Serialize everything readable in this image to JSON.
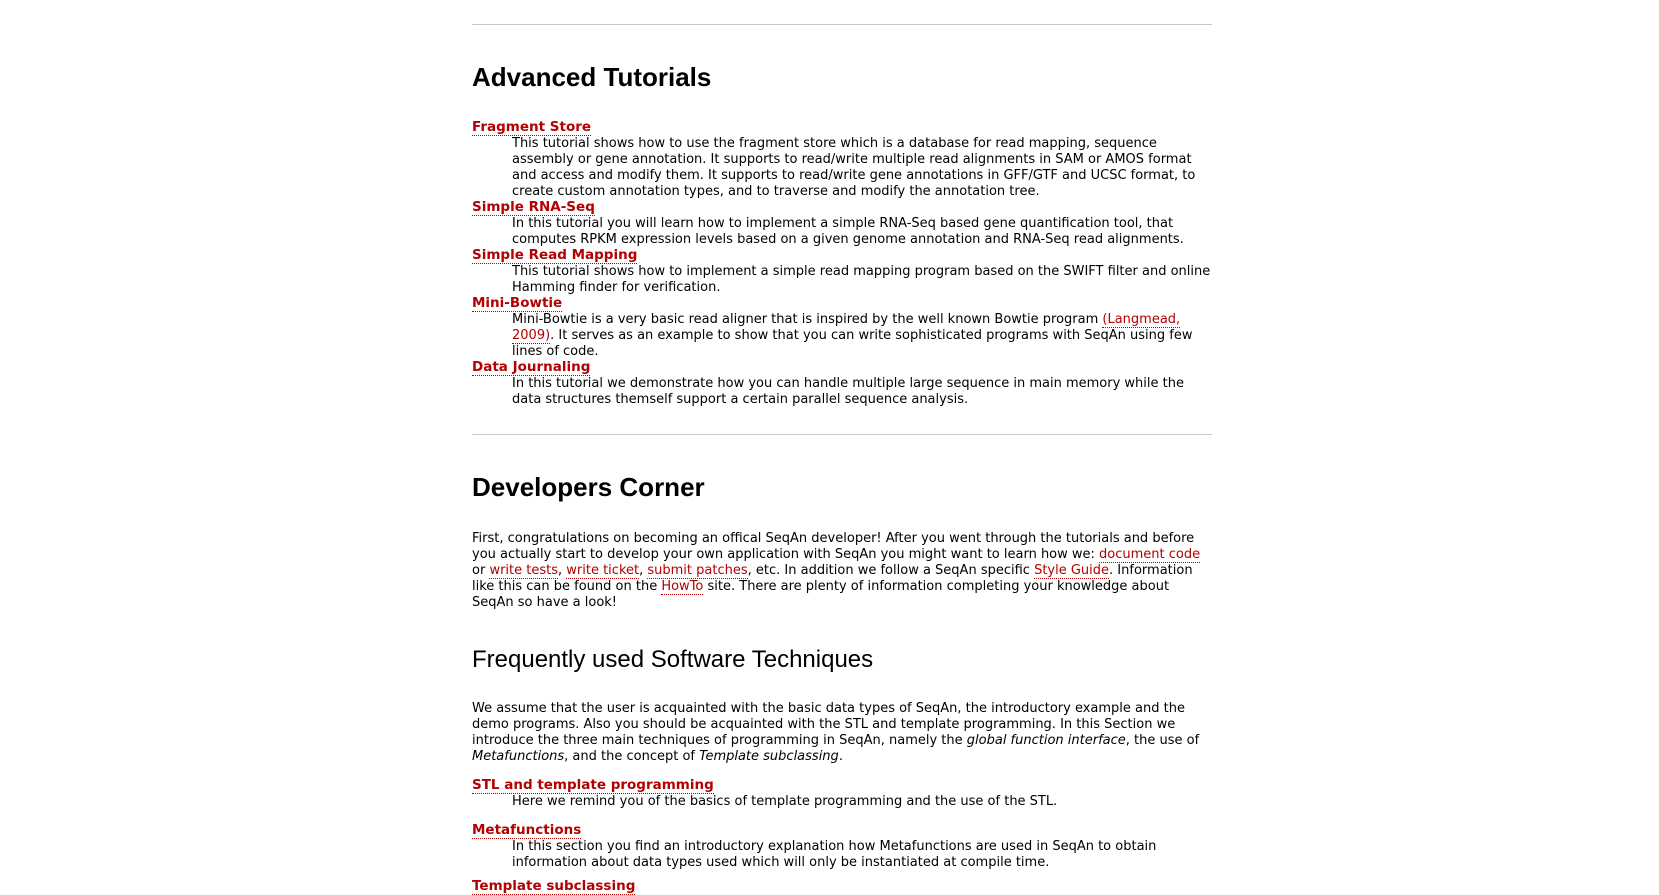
{
  "advanced": {
    "title": "Advanced Tutorials",
    "items": [
      {
        "term": "Fragment Store",
        "desc": "This tutorial shows how to use the fragment store which is a database for read mapping, sequence assembly or gene annotation. It supports to read/write multiple read alignments in SAM or AMOS format and access and modify them. It supports to read/write gene annotations in GFF/GTF and UCSC format, to create custom annotation types, and to traverse and modify the annotation tree."
      },
      {
        "term": "Simple RNA-Seq",
        "desc": "In this tutorial you will learn how to implement a simple RNA-Seq based gene quantification tool, that computes RPKM expression levels based on a given genome annotation and RNA-Seq read alignments."
      },
      {
        "term": "Simple Read Mapping",
        "desc": "This tutorial shows how to implement a simple read mapping program based on the SWIFT filter and online Hamming finder for verification."
      },
      {
        "term": "Mini-Bowtie",
        "desc_before": "Mini-Bowtie is a very basic read aligner that is inspired by the well known Bowtie program ",
        "desc_link": "(Langmead, 2009)",
        "desc_after": ". It serves as an example to show that you can write sophisticated programs with SeqAn using few lines of code."
      },
      {
        "term": "Data Journaling",
        "desc": "In this tutorial we demonstrate how you can handle multiple large sequence in main memory while the data structures themself support a certain parallel sequence analysis."
      }
    ]
  },
  "developers": {
    "title": "Developers Corner",
    "p1": "First, congratulations on becoming an offical SeqAn developer! After you went through the tutorials and before you actually start to develop your own application with SeqAn you might want to learn how we: ",
    "link_document_code": "document code",
    "sep_or": " or ",
    "link_write_tests": "write tests",
    "sep_comma1": ", ",
    "link_write_ticket": "write ticket",
    "sep_comma2": ", ",
    "link_submit_patches": "submit patches",
    "p2": ", etc. In addition we follow a SeqAn specific ",
    "link_style_guide": "Style Guide",
    "p3": ". Information like this can be found on the ",
    "link_howto": "HowTo",
    "p4": " site. There are plenty of information completing your knowledge about SeqAn so have a look!"
  },
  "techniques": {
    "title": "Frequently used Software Techniques",
    "intro_1": "We assume that the user is acquainted with the basic data types of SeqAn, the introductory example and the demo programs. Also you should be acquainted with the STL and template programming. In this Section we introduce the three main techniques of programming in SeqAn, namely the ",
    "intro_em1": "global function interface",
    "intro_2": ", the use of ",
    "intro_em2": "Metafunctions",
    "intro_3": ", and the concept of ",
    "intro_em3": "Template subclassing",
    "intro_4": ".",
    "items": [
      {
        "term": "STL and template programming",
        "desc": "Here we remind you of the basics of template programming and the use of the STL."
      },
      {
        "term": "Metafunctions",
        "desc": "In this section you find an introductory explanation how Metafunctions are used in SeqAn to obtain information about data types used which will only be instantiated at compile time."
      },
      {
        "term": "Template subclassing"
      }
    ]
  }
}
